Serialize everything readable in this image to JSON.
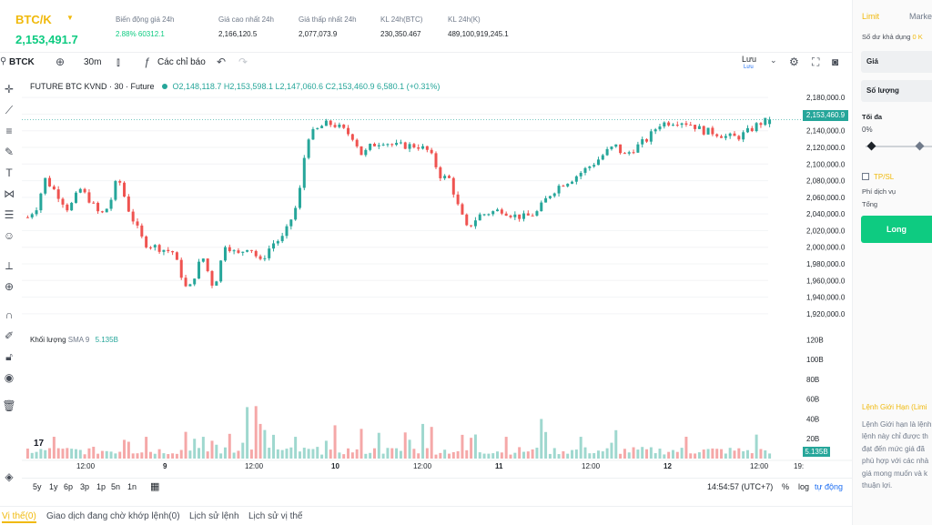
{
  "ticker": {
    "symbol": "BTC/K",
    "last_price": "2,153,491.7",
    "stats": [
      {
        "label": "Biến động giá 24h",
        "value": "2.88% 60312.1"
      },
      {
        "label": "Giá cao nhất 24h",
        "value": "2,166,120.5"
      },
      {
        "label": "Giá thấp nhất 24h",
        "value": "2,077,073.9"
      },
      {
        "label": "KL 24h(BTC)",
        "value": "230,350.467"
      },
      {
        "label": "KL 24h(K)",
        "value": "489,100,919,245.1"
      }
    ]
  },
  "toolbar": {
    "symbol": "BTCK",
    "interval": "30m",
    "indicators": "Các chỉ báo",
    "save": "Lưu",
    "save_sub": "Lưu"
  },
  "chart": {
    "legend_title": "FUTURE BTC KVND · 30 · Future",
    "ohlc": "O2,148,118.7 H2,153,598.1 L2,147,060.6 C2,153,460.9 6,580.1 (+0.31%)",
    "volume_title": "Khối lượng",
    "volume_sma": "SMA 9",
    "volume_value": "5.135B",
    "last_price_label": "2,153,460.9",
    "volume_label": "5.135B",
    "price_ticks": [
      "2,180,000.0",
      "2,160,000.0",
      "2,140,000.0",
      "2,120,000.0",
      "2,100,000.0",
      "2,080,000.0",
      "2,060,000.0",
      "2,040,000.0",
      "2,020,000.0",
      "2,000,000.0",
      "1,980,000.0",
      "1,960,000.0",
      "1,940,000.0",
      "1,920,000.0"
    ],
    "volume_ticks": [
      "120B",
      "100B",
      "80B",
      "60B",
      "40B",
      "20B"
    ],
    "time_ticks": [
      "12:00",
      "9",
      "12:00",
      "10",
      "12:00",
      "11",
      "12:00",
      "12",
      "12:00",
      "19:"
    ]
  },
  "chart_data": {
    "type": "candlestick",
    "price_range": [
      1910000,
      2190000
    ],
    "volume_range_B": [
      0,
      125
    ],
    "up_color": "#26a69a",
    "down_color": "#ef5350",
    "candles": [],
    "volumes_B": []
  },
  "rangebar": {
    "ranges": [
      "5y",
      "1y",
      "6p",
      "3p",
      "1p",
      "5n",
      "1n"
    ],
    "clock": "14:54:57 (UTC+7)",
    "percent": "%",
    "log": "log",
    "auto": "tự động"
  },
  "tabs": [
    "Vị thế(0)",
    "Giao dịch đang chờ khớp lệnh(0)",
    "Lịch sử lệnh",
    "Lịch sử vị thế"
  ],
  "panel": {
    "tab_limit": "Limit",
    "tab_market": "Market",
    "balance_label": "Số dư khả dụng",
    "balance_value": "0 K",
    "price_label": "Giá",
    "qty_label": "Số lượng",
    "max_label": "Tối đa",
    "percent": "0%",
    "tpsl": "TP/SL",
    "fee": "Phí dịch vụ",
    "total": "Tổng",
    "long": "Long",
    "info_title": "Lệnh Giới Hạn (Limi",
    "info_lines": [
      "Lệnh Giới hạn là lệnh",
      "lệnh này chỉ được th",
      "đạt đến mức giá đã",
      "phù hợp với các nhà",
      "giá mong muốn và k",
      "thuận lợi."
    ]
  }
}
